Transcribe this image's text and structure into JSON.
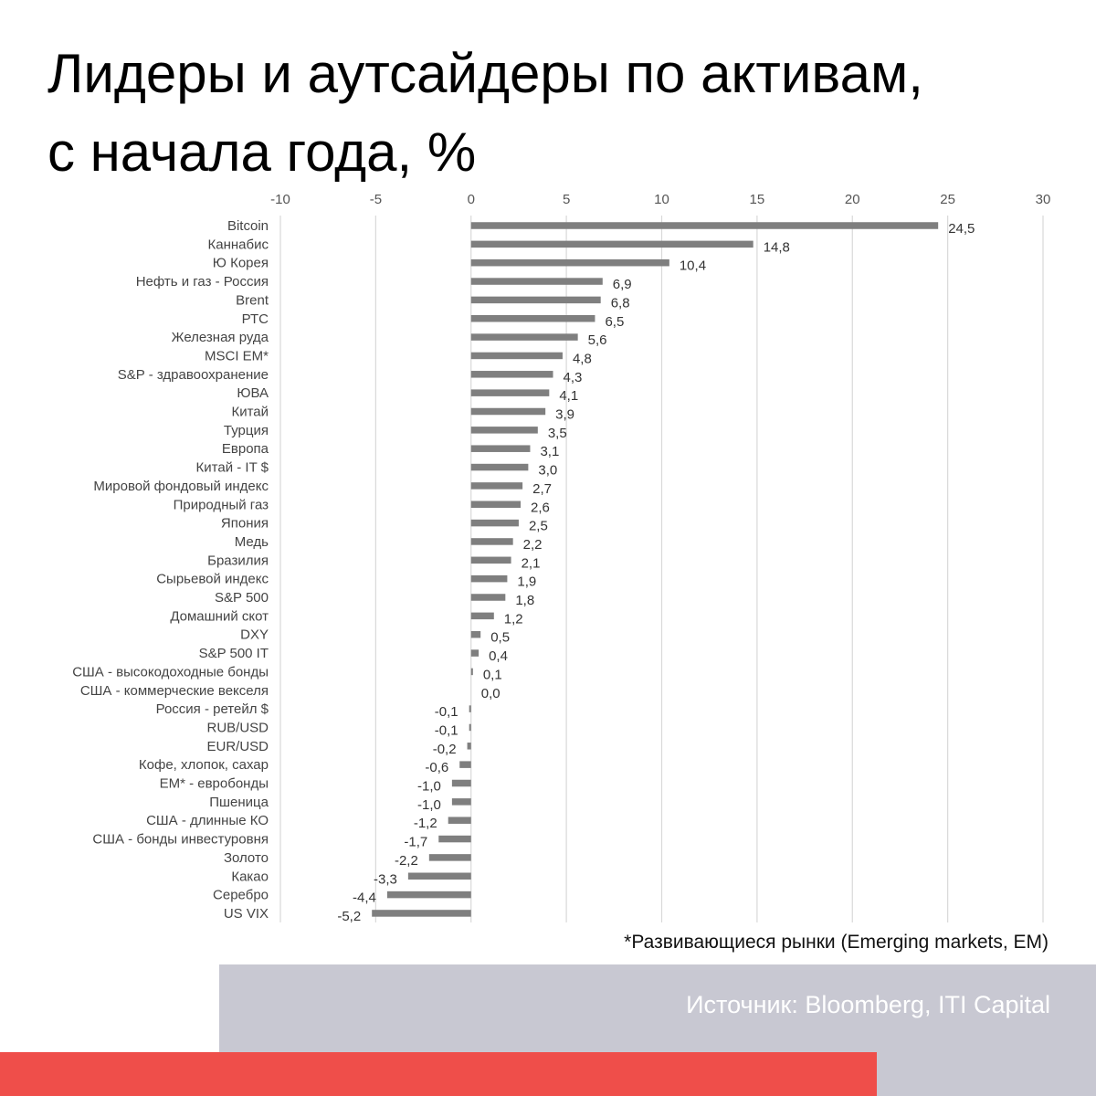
{
  "title_lines": [
    "Лидеры и аутсайдеры по активам,",
    "с начала года, %"
  ],
  "footnote": "*Развивающиеся рынки (Emerging markets, EM)",
  "source": "Источник: Bloomberg, ITI Capital",
  "colors": {
    "bar": "#7f7f7f",
    "grid": "#d9d9d9",
    "source_band": "#c8c8d2",
    "red_band": "#ef4e4a"
  },
  "chart_data": {
    "type": "bar",
    "orientation": "horizontal",
    "xlim": [
      -10,
      30
    ],
    "x_ticks": [
      -10,
      -5,
      0,
      5,
      10,
      15,
      20,
      25,
      30
    ],
    "x_tick_labels": [
      "-10",
      "-5",
      "0",
      "5",
      "10",
      "15",
      "20",
      "25",
      "30"
    ],
    "x_axis_position": "top",
    "grid": true,
    "categories": [
      "Bitcoin",
      "Каннабис",
      "Ю Корея",
      "Нефть и газ - Россия",
      "Brent",
      "РТС",
      "Железная руда",
      "MSCI EM*",
      "S&P - здравоохранение",
      "ЮВА",
      "Китай",
      "Турция",
      "Европа",
      "Китай - IT $",
      "Мировой фондовый индекс",
      "Природный газ",
      "Япония",
      "Медь",
      "Бразилия",
      "Сырьевой индекс",
      "S&P 500",
      "Домашний скот",
      "DXY",
      "S&P 500 IT",
      "США - высокодоходные бонды",
      "США - коммерческие векселя",
      "Россия - ретейл $",
      "RUB/USD",
      "EUR/USD",
      "Кофе, хлопок, сахар",
      "EM* - евробонды",
      "Пшеница",
      "США  - длинные КО",
      "США - бонды инвестуровня",
      "Золото",
      "Какао",
      "Серебро",
      "US VIX"
    ],
    "values": [
      24.5,
      14.8,
      10.4,
      6.9,
      6.8,
      6.5,
      5.6,
      4.8,
      4.3,
      4.1,
      3.9,
      3.5,
      3.1,
      3.0,
      2.7,
      2.6,
      2.5,
      2.2,
      2.1,
      1.9,
      1.8,
      1.2,
      0.5,
      0.4,
      0.1,
      0.0,
      -0.1,
      -0.1,
      -0.2,
      -0.6,
      -1.0,
      -1.0,
      -1.2,
      -1.7,
      -2.2,
      -3.3,
      -4.4,
      -5.2
    ],
    "value_labels": [
      "24,5",
      "14,8",
      "10,4",
      "6,9",
      "6,8",
      "6,5",
      "5,6",
      "4,8",
      "4,3",
      "4,1",
      "3,9",
      "3,5",
      "3,1",
      "3,0",
      "2,7",
      "2,6",
      "2,5",
      "2,2",
      "2,1",
      "1,9",
      "1,8",
      "1,2",
      "0,5",
      "0,4",
      "0,1",
      "0,0",
      "-0,1",
      "-0,1",
      "-0,2",
      "-0,6",
      "-1,0",
      "-1,0",
      "-1,2",
      "-1,7",
      "-2,2",
      "-3,3",
      "-4,4",
      "-5,2"
    ]
  }
}
